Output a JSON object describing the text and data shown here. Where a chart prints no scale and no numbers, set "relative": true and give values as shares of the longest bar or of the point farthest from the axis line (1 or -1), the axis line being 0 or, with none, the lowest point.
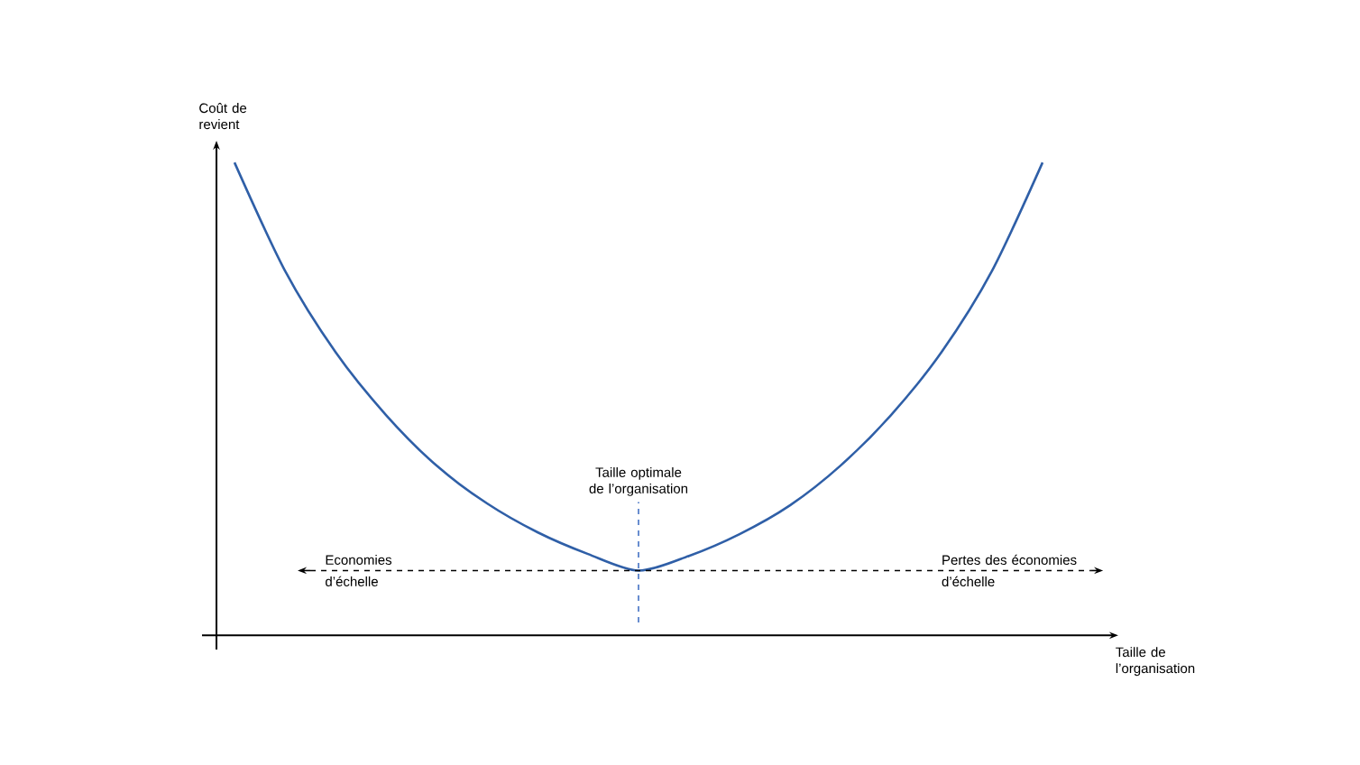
{
  "chart_data": {
    "type": "line",
    "relative": true,
    "xlabel": "Taille de l’organisation",
    "ylabel": "Coût de revient",
    "line_style": "solid",
    "categories": [
      null,
      null,
      null,
      null,
      null,
      null,
      null,
      null,
      null,
      null,
      null,
      null,
      null,
      null,
      null,
      null,
      null
    ],
    "series": [
      {
        "color": "#2f5fa7",
        "values": [
          1.0,
          0.771,
          0.599,
          0.466,
          0.359,
          0.279,
          0.218,
          0.172,
          0.137,
          0.168,
          0.214,
          0.275,
          0.359,
          0.466,
          0.599,
          0.771,
          1.0
        ]
      }
    ],
    "ref_lines": [
      {
        "axis": "y",
        "value": 0.137,
        "color": "#000000",
        "line_style": "dashed"
      }
    ],
    "annotations": [
      "Taille optimale de l’organisation",
      "Economies d’échelle",
      "Pertes des économies d’échelle"
    ]
  }
}
